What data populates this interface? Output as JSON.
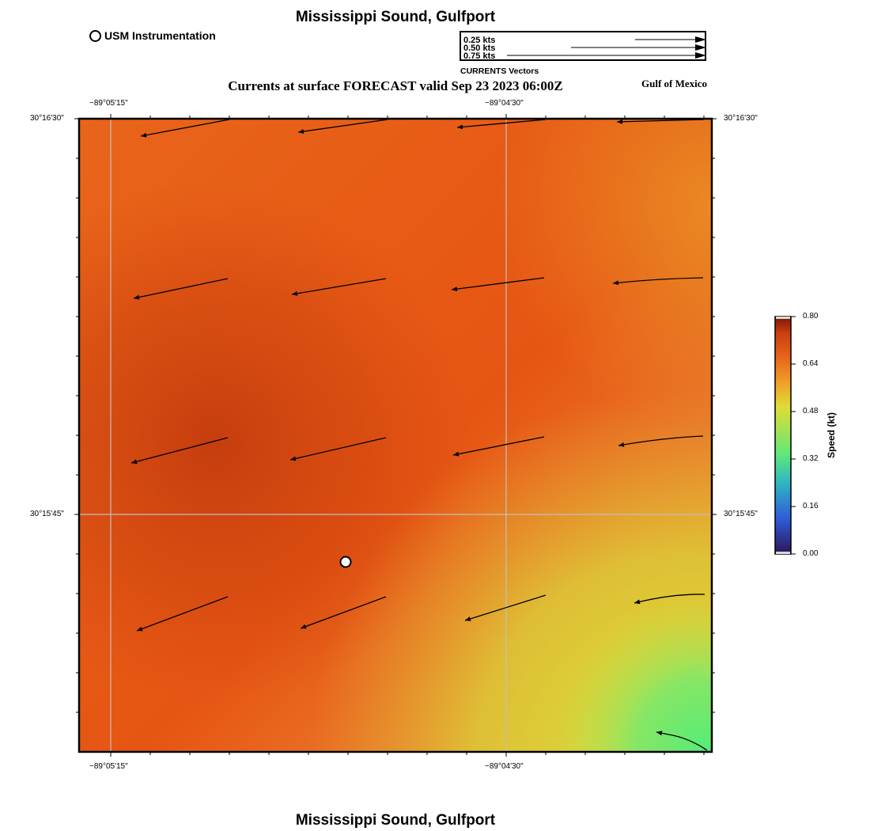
{
  "header": {
    "title": "Mississippi Sound, Gulfport",
    "subtitle": "Currents at surface FORECAST valid Sep 23 2023 06:00Z",
    "region": "Gulf of Mexico",
    "footer_title": "Mississippi Sound, Gulfport"
  },
  "station_legend": {
    "label": "USM Instrumentation"
  },
  "vector_legend": {
    "title": "CURRENTS Vectors",
    "entries": [
      {
        "label": "0.25 kts",
        "speed_kt": 0.25
      },
      {
        "label": "0.50 kts",
        "speed_kt": 0.5
      },
      {
        "label": "0.75 kts",
        "speed_kt": 0.75
      }
    ]
  },
  "axes": {
    "x_top": [
      "−89°05'15\"",
      "−89°04'30\""
    ],
    "x_bottom": [
      "−89°05'15\"",
      "−89°04'30\""
    ],
    "y_left": [
      "30°16'30\"",
      "30°15'45\""
    ],
    "y_right": [
      "30°16'30\"",
      "30°15'45\""
    ]
  },
  "colorbar": {
    "title": "Speed (kt)",
    "ticks": [
      "0.80",
      "0.64",
      "0.48",
      "0.32",
      "0.16",
      "0.00"
    ],
    "range_kt": [
      0,
      0.8
    ],
    "stops": [
      "#2a1656",
      "#2f6ee0",
      "#34c7a8",
      "#5fe87a",
      "#e0dc36",
      "#ee9326",
      "#e85a12",
      "#c53a0e",
      "#7a1608"
    ]
  },
  "station": {
    "name": "USM Instrumentation"
  },
  "colors": {
    "field_dark": "#c6400e",
    "field_main": "#e65513",
    "field_orange": "#ea9427",
    "field_yellow": "#dcd636",
    "field_green": "#5ceb75",
    "grid": "#bdbdbd"
  }
}
